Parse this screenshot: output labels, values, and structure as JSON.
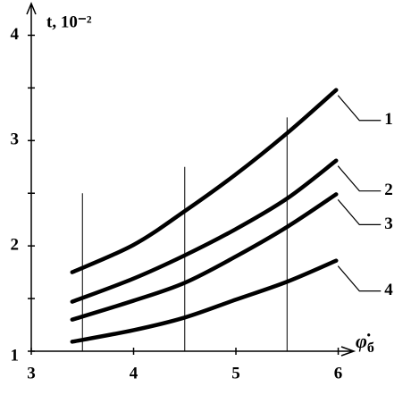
{
  "chart_data": {
    "type": "line",
    "y_label": "t, 10⁻²",
    "x_label": {
      "symbol": "φ̇",
      "subscript": "б"
    },
    "xlim": [
      3,
      6.1
    ],
    "ylim": [
      1,
      4.25
    ],
    "xticks": [
      3,
      4,
      5,
      6
    ],
    "yticks": [
      1,
      2,
      3,
      4
    ],
    "yminor": [
      1.5,
      2.5,
      3.5
    ],
    "reference_lines": [
      {
        "x": 3.5,
        "y": 2.5
      },
      {
        "x": 4.5,
        "y": 2.75
      },
      {
        "x": 5.5,
        "y": 3.22
      }
    ],
    "x": [
      3.4,
      4,
      4.5,
      5,
      5.5,
      5.98
    ],
    "series": [
      {
        "name": "1",
        "color": "#000000",
        "values": [
          1.75,
          2.01,
          2.33,
          2.68,
          3.07,
          3.48
        ]
      },
      {
        "name": "2",
        "color": "#000000",
        "values": [
          1.47,
          1.69,
          1.91,
          2.16,
          2.45,
          2.81
        ]
      },
      {
        "name": "3",
        "color": "#000000",
        "values": [
          1.3,
          1.48,
          1.65,
          1.9,
          2.18,
          2.49
        ]
      },
      {
        "name": "4",
        "color": "#000000",
        "values": [
          1.09,
          1.2,
          1.32,
          1.49,
          1.66,
          1.86
        ]
      }
    ]
  }
}
